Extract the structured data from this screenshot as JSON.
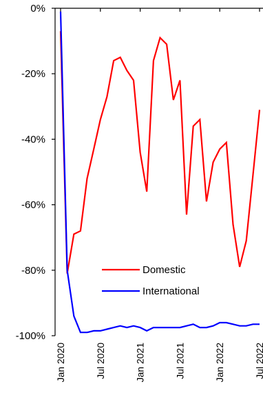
{
  "chart_data": {
    "type": "line",
    "title": "",
    "xlabel": "",
    "ylabel": "",
    "ylim": [
      -100,
      0
    ],
    "y_ticks": [
      0,
      -20,
      -40,
      -60,
      -80,
      -100
    ],
    "y_tick_labels": [
      "0%",
      "-20%",
      "-40%",
      "-60%",
      "-80%",
      "-100%"
    ],
    "x_tick_labels": [
      "Jan 2020",
      "Jul 2020",
      "Jan 2021",
      "Jul 2021",
      "Jan 2022",
      "Jul 2022"
    ],
    "x_tick_months": [
      0,
      6,
      12,
      18,
      24,
      30
    ],
    "x_range_months": [
      0,
      30
    ],
    "grid": false,
    "legend_position": "bottom-center",
    "months": [
      "2020-01",
      "2020-02",
      "2020-03",
      "2020-04",
      "2020-05",
      "2020-06",
      "2020-07",
      "2020-08",
      "2020-09",
      "2020-10",
      "2020-11",
      "2020-12",
      "2021-01",
      "2021-02",
      "2021-03",
      "2021-04",
      "2021-05",
      "2021-06",
      "2021-07",
      "2021-08",
      "2021-09",
      "2021-10",
      "2021-11",
      "2021-12",
      "2022-01",
      "2022-02",
      "2022-03",
      "2022-04",
      "2022-05",
      "2022-06",
      "2022-07"
    ],
    "series": [
      {
        "name": "Domestic",
        "color": "#ff0000",
        "values": [
          -7,
          -81,
          -69,
          -68,
          -52,
          -43,
          -34,
          -27,
          -16,
          -15,
          -19,
          -22,
          -44,
          -56,
          -16,
          -9,
          -11,
          -28,
          -22,
          -63,
          -36,
          -34,
          -59,
          -47,
          -43,
          -41,
          -66,
          -79,
          -71,
          -51,
          -31
        ]
      },
      {
        "name": "International",
        "color": "#0000ff",
        "values": [
          -1,
          -80,
          -94,
          -99,
          -99,
          -98.5,
          -98.5,
          -98,
          -97.5,
          -97,
          -97.5,
          -97,
          -97.5,
          -98.5,
          -97.5,
          -97.5,
          -97.5,
          -97.5,
          -97.5,
          -97,
          -96.5,
          -97.5,
          -97.5,
          -97,
          -96,
          -96,
          -96.5,
          -97,
          -97,
          -96.5,
          -96.5
        ]
      }
    ]
  }
}
